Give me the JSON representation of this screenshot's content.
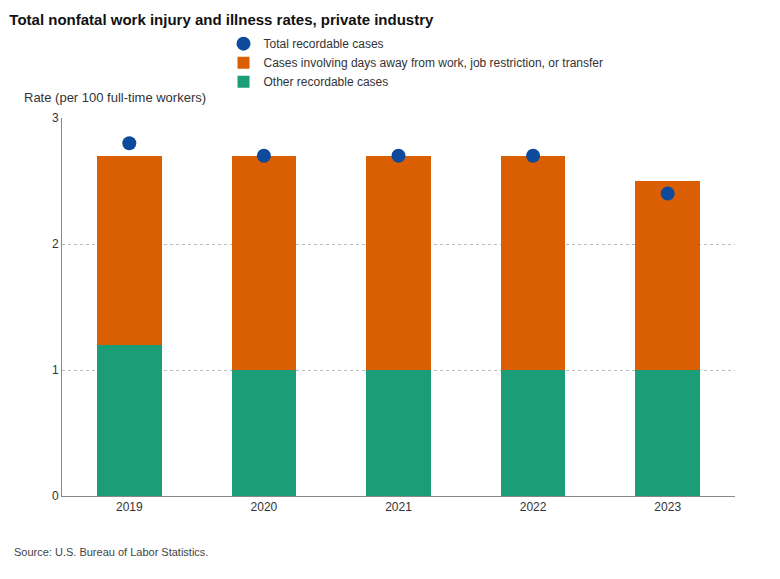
{
  "chart_data": {
    "type": "bar",
    "title": "Total nonfatal work injury and illness rates, private industry",
    "ylabel": "Rate (per 100 full-time workers)",
    "annotations": [
      "Source: U.S. Bureau of Labor Statistics."
    ],
    "categories": [
      "2019",
      "2020",
      "2021",
      "2022",
      "2023"
    ],
    "series": [
      {
        "name": "Total recordable cases",
        "type": "scatter",
        "marker": "circle",
        "color": "#0d4a9c",
        "values": [
          2.8,
          2.7,
          2.7,
          2.7,
          2.4
        ]
      },
      {
        "name": "Cases involving days away from work, job restriction, or transfer",
        "type": "bar",
        "color": "#d95f02",
        "values": [
          1.5,
          1.7,
          1.7,
          1.7,
          1.5
        ]
      },
      {
        "name": "Other recordable cases",
        "type": "bar",
        "color": "#1b9e77",
        "values": [
          1.2,
          1.0,
          1.0,
          1.0,
          1.0
        ]
      }
    ],
    "stacked": true,
    "ylim": [
      0,
      3
    ],
    "yticks": [
      0,
      1,
      2,
      3
    ],
    "grid": true,
    "legend": "top"
  }
}
